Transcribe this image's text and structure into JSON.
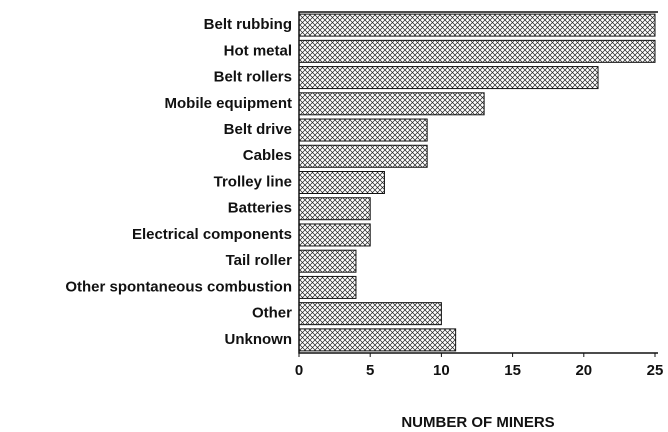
{
  "chart_data": {
    "type": "hbar",
    "x_label": "NUMBER OF MINERS",
    "categories": [
      "Belt rubbing",
      "Hot metal",
      "Belt rollers",
      "Mobile equipment",
      "Belt drive",
      "Cables",
      "Trolley line",
      "Batteries",
      "Electrical components",
      "Tail roller",
      "Other spontaneous combustion",
      "Other",
      "Unknown"
    ],
    "values": [
      25,
      25,
      21,
      13,
      9,
      9,
      6,
      5,
      5,
      4,
      4,
      10,
      11
    ],
    "xlim": [
      0,
      25
    ],
    "xticks": [
      0,
      5,
      10,
      15,
      20,
      25
    ]
  }
}
